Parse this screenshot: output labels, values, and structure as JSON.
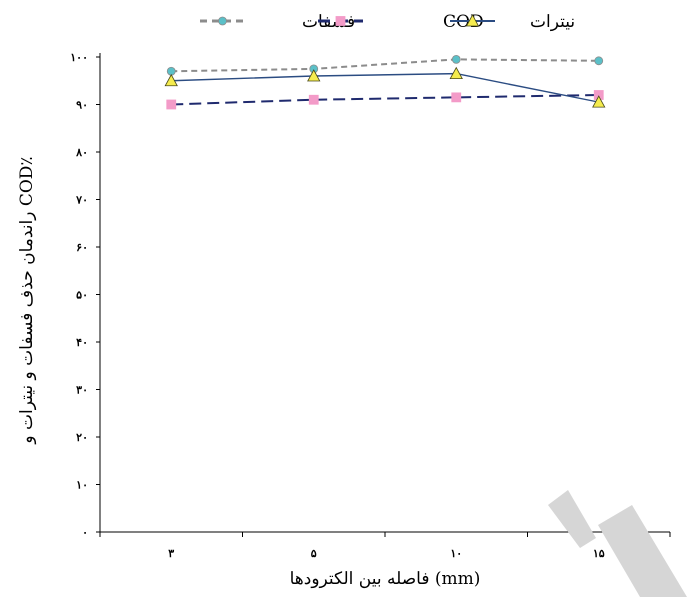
{
  "chart_data": {
    "type": "line",
    "categories": [
      "۳",
      "۵",
      "۱۰",
      "۱۵"
    ],
    "series": [
      {
        "name": "فسفات",
        "values": [
          97,
          97.5,
          99.5,
          99.2
        ],
        "color": "#8c8c8c",
        "marker_color": "#5bc0c8",
        "marker": "circle",
        "dash": "dashed"
      },
      {
        "name": "COD",
        "values": [
          90,
          91,
          91.5,
          92
        ],
        "color": "#1f2a6e",
        "marker_color": "#f39bc8",
        "marker": "square",
        "dash": "long-dashed"
      },
      {
        "name": "نیترات",
        "values": [
          95,
          96,
          96.5,
          90.5
        ],
        "color": "#2b4c82",
        "marker_color": "#f5ec4e",
        "marker": "triangle",
        "dash": "solid"
      }
    ],
    "xlabel": "فاصله بین الکترودها (mm)",
    "ylabel": "راندمان حذف فسفات و نیترات و COD٪",
    "yticks": [
      "۰",
      "۱۰",
      "۲۰",
      "۳۰",
      "۴۰",
      "۵۰",
      "۶۰",
      "۷۰",
      "۸۰",
      "۹۰",
      "۱۰۰"
    ],
    "ylim": [
      0,
      100
    ],
    "grid": false,
    "legend_position": "top"
  }
}
